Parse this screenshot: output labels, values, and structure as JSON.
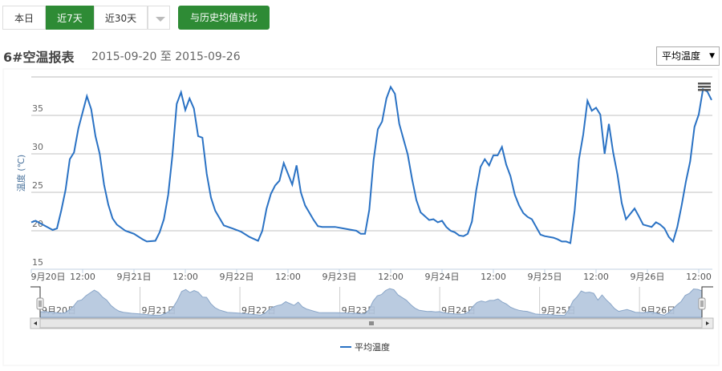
{
  "toolbar": {
    "buttons": [
      {
        "label": "本日",
        "active": false
      },
      {
        "label": "近7天",
        "active": true
      },
      {
        "label": "近30天",
        "active": false
      }
    ],
    "dropdown_icon": "caret-down-icon",
    "compare_label": "与历史均值对比"
  },
  "report": {
    "title": "6#空温报表",
    "date_range": "2015-09-20 至 2015-09-26"
  },
  "metric_select": {
    "value": "平均温度"
  },
  "chart_data": {
    "type": "line",
    "ylabel": "温度 (℃)",
    "ylim": [
      15,
      40
    ],
    "yticks": [
      "15",
      "20",
      "25",
      "30",
      "35"
    ],
    "xlim": [
      "2015-09-20 00:00",
      "2015-09-26 15:00"
    ],
    "xticks": [
      "9月20日",
      "12:00",
      "9月21日",
      "12:00",
      "9月22日",
      "12:00",
      "9月23日",
      "12:00",
      "9月24日",
      "12:00",
      "9月25日",
      "12:00",
      "9月26日",
      "12:00"
    ],
    "navigator_labels": [
      "9月20日",
      "9月21日",
      "9月22日",
      "9月23日",
      "9月24日",
      "9月25日",
      "9月26日"
    ],
    "grid": true,
    "legend_position": "bottom",
    "color": "#2a72c4",
    "navigator_color": "#b2c5dd",
    "series": [
      {
        "name": "平均温度",
        "days": [
          {
            "date": "2015-09-20",
            "points": [
              [
                0,
                21.1
              ],
              [
                1,
                21.3
              ],
              [
                3,
                20.7
              ],
              [
                5,
                20.1
              ],
              [
                6,
                20.3
              ],
              [
                7,
                22.6
              ],
              [
                8,
                25.3
              ],
              [
                9,
                29.3
              ],
              [
                10,
                30.2
              ],
              [
                11,
                33.3
              ],
              [
                13,
                37.5
              ],
              [
                14,
                35.8
              ],
              [
                15,
                32.3
              ],
              [
                16,
                30
              ],
              [
                17,
                26
              ],
              [
                18,
                23.4
              ],
              [
                19,
                21.6
              ],
              [
                20,
                20.8
              ],
              [
                22,
                20
              ]
            ]
          },
          {
            "date": "2015-09-21",
            "points": [
              [
                0,
                19.6
              ],
              [
                2,
                18.9
              ],
              [
                3,
                18.6
              ],
              [
                5,
                18.7
              ],
              [
                6,
                19.8
              ],
              [
                7,
                21.5
              ],
              [
                8,
                24.7
              ],
              [
                9,
                29.9
              ],
              [
                10,
                36.5
              ],
              [
                11,
                38
              ],
              [
                12,
                35.7
              ],
              [
                13,
                37.2
              ],
              [
                14,
                35.9
              ],
              [
                15,
                32.3
              ],
              [
                16,
                32.1
              ],
              [
                17,
                27.4
              ],
              [
                18,
                24.3
              ],
              [
                19,
                22.6
              ],
              [
                21,
                20.7
              ],
              [
                23,
                20.3
              ]
            ]
          },
          {
            "date": "2015-09-22",
            "points": [
              [
                1,
                19.9
              ],
              [
                3,
                19.2
              ],
              [
                5,
                18.7
              ],
              [
                6,
                20
              ],
              [
                7,
                22.9
              ],
              [
                8,
                24.8
              ],
              [
                9,
                25.9
              ],
              [
                10,
                26.5
              ],
              [
                11,
                28.8
              ],
              [
                13,
                26
              ],
              [
                14,
                28.5
              ],
              [
                15,
                25
              ],
              [
                16,
                23.3
              ],
              [
                18,
                21.4
              ],
              [
                19,
                20.6
              ],
              [
                20,
                20.5
              ],
              [
                23,
                20.5
              ]
            ]
          },
          {
            "date": "2015-09-23",
            "points": [
              [
                1,
                20.3
              ],
              [
                4,
                20
              ],
              [
                5,
                19.6
              ],
              [
                6,
                19.6
              ],
              [
                7,
                22.7
              ],
              [
                8,
                29.2
              ],
              [
                9,
                33.2
              ],
              [
                10,
                34.2
              ],
              [
                11,
                37.2
              ],
              [
                12,
                38.7
              ],
              [
                13,
                37.8
              ],
              [
                14,
                33.9
              ],
              [
                16,
                29.9
              ],
              [
                17,
                26.7
              ],
              [
                18,
                24
              ],
              [
                19,
                22.4
              ],
              [
                21,
                21.4
              ],
              [
                22,
                21.5
              ],
              [
                23,
                21.1
              ]
            ]
          },
          {
            "date": "2015-09-24",
            "points": [
              [
                0,
                21.3
              ],
              [
                1,
                20.5
              ],
              [
                2,
                20
              ],
              [
                3,
                19.8
              ],
              [
                4,
                19.4
              ],
              [
                5,
                19.3
              ],
              [
                6,
                19.6
              ],
              [
                7,
                21.2
              ],
              [
                8,
                25.3
              ],
              [
                9,
                28.3
              ],
              [
                10,
                29.3
              ],
              [
                11,
                28.5
              ],
              [
                12,
                29.8
              ],
              [
                13,
                29.8
              ],
              [
                14,
                30.9
              ],
              [
                15,
                28.6
              ],
              [
                16,
                27.1
              ],
              [
                17,
                24.7
              ],
              [
                18,
                23.3
              ],
              [
                19,
                22.3
              ],
              [
                20,
                21.8
              ],
              [
                21,
                21.5
              ],
              [
                23,
                19.5
              ]
            ]
          },
          {
            "date": "2015-09-25",
            "points": [
              [
                0,
                19.3
              ],
              [
                2,
                19.1
              ],
              [
                3,
                18.9
              ],
              [
                4,
                18.6
              ],
              [
                5,
                18.6
              ],
              [
                6,
                18.4
              ],
              [
                7,
                22.6
              ],
              [
                8,
                29.3
              ],
              [
                9,
                32.5
              ],
              [
                10,
                36.9
              ],
              [
                11,
                35.6
              ],
              [
                12,
                36
              ],
              [
                13,
                35.1
              ],
              [
                14,
                30
              ],
              [
                15,
                33.9
              ],
              [
                16,
                30.2
              ],
              [
                17,
                27.3
              ],
              [
                18,
                23.6
              ],
              [
                19,
                21.5
              ],
              [
                20,
                22.2
              ],
              [
                21,
                22.9
              ],
              [
                22,
                21.9
              ],
              [
                23,
                20.8
              ]
            ]
          },
          {
            "date": "2015-09-26",
            "points": [
              [
                1,
                20.5
              ],
              [
                2,
                21.1
              ],
              [
                3,
                20.8
              ],
              [
                4,
                20.3
              ],
              [
                5,
                19.2
              ],
              [
                6,
                18.6
              ],
              [
                7,
                20.5
              ],
              [
                8,
                23.3
              ],
              [
                9,
                26.4
              ],
              [
                10,
                29
              ],
              [
                11,
                33.5
              ],
              [
                12,
                35.1
              ],
              [
                13,
                38.4
              ],
              [
                14,
                38.1
              ],
              [
                15,
                37
              ]
            ]
          }
        ]
      }
    ],
    "menu_icon": "hamburger-menu-icon"
  }
}
